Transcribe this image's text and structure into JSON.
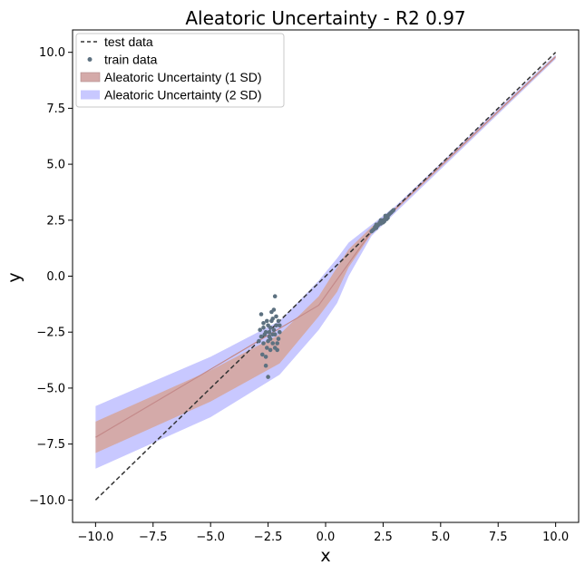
{
  "chart_data": {
    "type": "line",
    "title": "Aleatoric Uncertainty - R2 0.97",
    "xlabel": "x",
    "ylabel": "y",
    "xlim": [
      -11.0,
      11.0
    ],
    "ylim": [
      -11.0,
      11.0
    ],
    "x_ticks": [
      -10.0,
      -7.5,
      -5.0,
      -2.5,
      0.0,
      2.5,
      5.0,
      7.5,
      10.0
    ],
    "y_ticks": [
      -10.0,
      -7.5,
      -5.0,
      -2.5,
      0.0,
      2.5,
      5.0,
      7.5,
      10.0
    ],
    "x_tick_labels": [
      "−10.0",
      "−7.5",
      "−5.0",
      "−2.5",
      "0.0",
      "2.5",
      "5.0",
      "7.5",
      "10.0"
    ],
    "y_tick_labels": [
      "−10.0",
      "−7.5",
      "−5.0",
      "−2.5",
      "0.0",
      "2.5",
      "5.0",
      "7.5",
      "10.0"
    ],
    "grid": false,
    "legend_position": "top-left",
    "legend": [
      {
        "label": "test data",
        "kind": "dashed-line",
        "color": "#333333"
      },
      {
        "label": "train data",
        "kind": "marker",
        "color": "#5d7180"
      },
      {
        "label": "Aleatoric Uncertainty (1 SD)",
        "kind": "patch",
        "color": "#d4aaa9"
      },
      {
        "label": "Aleatoric Uncertainty (2 SD)",
        "kind": "patch",
        "color": "#c8c8ff"
      }
    ],
    "test_data": {
      "x": [
        -10.0,
        10.0
      ],
      "y": [
        -10.0,
        10.0
      ],
      "color": "#333333"
    },
    "mean_line": {
      "x": [
        -10.0,
        -0.3,
        2.0,
        10.0
      ],
      "y": [
        -7.2,
        -1.3,
        2.0,
        9.8
      ],
      "color": "#c48a8a"
    },
    "band_2sd": {
      "x": [
        -10.0,
        -5.0,
        -2.0,
        -0.3,
        0.5,
        1.0,
        2.0,
        3.0,
        10.0
      ],
      "upper": [
        -5.8,
        -3.6,
        -2.0,
        -0.2,
        0.8,
        1.5,
        2.3,
        3.1,
        9.9
      ],
      "lower": [
        -8.6,
        -6.3,
        -4.4,
        -2.4,
        -1.2,
        0.0,
        1.8,
        2.8,
        9.7
      ],
      "color": "#c8c8ff"
    },
    "band_1sd": {
      "x": [
        -10.0,
        -5.0,
        -2.0,
        -0.3,
        0.5,
        1.0,
        2.0,
        3.0,
        10.0
      ],
      "upper": [
        -6.5,
        -4.2,
        -2.6,
        -0.9,
        0.4,
        1.2,
        2.2,
        3.0,
        9.85
      ],
      "lower": [
        -7.9,
        -5.6,
        -3.9,
        -1.8,
        -0.7,
        0.4,
        1.9,
        2.9,
        9.75
      ],
      "color": "#d4aaa9"
    },
    "train_data": {
      "color": "#5d7180",
      "points": [
        [
          -2.8,
          -1.7
        ],
        [
          -2.7,
          -2.1
        ],
        [
          -2.6,
          -2.5
        ],
        [
          -2.5,
          -2.9
        ],
        [
          -2.4,
          -2.3
        ],
        [
          -2.3,
          -1.9
        ],
        [
          -2.2,
          -2.6
        ],
        [
          -2.1,
          -3.0
        ],
        [
          -2.0,
          -2.2
        ],
        [
          -2.15,
          -1.8
        ],
        [
          -2.35,
          -2.0
        ],
        [
          -2.55,
          -3.2
        ],
        [
          -2.75,
          -3.5
        ],
        [
          -2.45,
          -2.7
        ],
        [
          -2.25,
          -2.4
        ],
        [
          -2.05,
          -2.8
        ],
        [
          -2.65,
          -2.6
        ],
        [
          -2.85,
          -2.4
        ],
        [
          -2.5,
          -2.2
        ],
        [
          -2.3,
          -2.6
        ],
        [
          -2.2,
          -0.9
        ],
        [
          -2.6,
          -4.0
        ],
        [
          -2.5,
          -4.5
        ],
        [
          -2.4,
          -3.3
        ],
        [
          -2.1,
          -3.3
        ],
        [
          -2.9,
          -2.9
        ],
        [
          -2.0,
          -2.5
        ],
        [
          -2.2,
          -3.2
        ],
        [
          -2.7,
          -3.0
        ],
        [
          -2.35,
          -1.6
        ],
        [
          -2.55,
          -2.0
        ],
        [
          -2.15,
          -2.2
        ],
        [
          -2.45,
          -2.5
        ],
        [
          -2.05,
          -2.0
        ],
        [
          -2.6,
          -3.6
        ],
        [
          -2.8,
          -2.7
        ],
        [
          -2.3,
          -3.0
        ],
        [
          -2.4,
          -2.8
        ],
        [
          -2.25,
          -1.5
        ],
        [
          -2.7,
          -2.3
        ],
        [
          2.0,
          2.0
        ],
        [
          2.1,
          2.1
        ],
        [
          2.15,
          2.2
        ],
        [
          2.2,
          2.15
        ],
        [
          2.3,
          2.3
        ],
        [
          2.35,
          2.4
        ],
        [
          2.4,
          2.35
        ],
        [
          2.5,
          2.5
        ],
        [
          2.55,
          2.45
        ],
        [
          2.6,
          2.6
        ],
        [
          2.65,
          2.55
        ],
        [
          2.7,
          2.7
        ],
        [
          2.75,
          2.75
        ],
        [
          2.8,
          2.8
        ],
        [
          2.85,
          2.85
        ],
        [
          2.9,
          2.9
        ],
        [
          2.25,
          2.25
        ],
        [
          2.45,
          2.45
        ],
        [
          2.05,
          2.05
        ],
        [
          2.95,
          2.95
        ],
        [
          2.6,
          2.7
        ],
        [
          2.4,
          2.5
        ],
        [
          2.2,
          2.3
        ],
        [
          2.7,
          2.6
        ],
        [
          2.5,
          2.4
        ]
      ]
    }
  }
}
